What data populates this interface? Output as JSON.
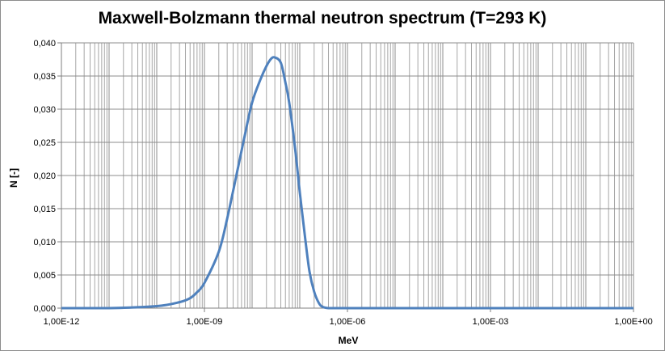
{
  "chart_data": {
    "type": "line",
    "title": "Maxwell-Bolzmann thermal neutron spectrum (T=293 K)",
    "xlabel": "MeV",
    "ylabel": "N [-]",
    "x_scale": "log",
    "xlim": [
      1e-12,
      1
    ],
    "ylim": [
      0,
      0.04
    ],
    "x_tick_labels": [
      "1,00E-12",
      "1,00E-09",
      "1,00E-06",
      "1,00E-03",
      "1,00E+00"
    ],
    "y_tick_labels": [
      "0,000",
      "0,005",
      "0,010",
      "0,015",
      "0,020",
      "0,025",
      "0,030",
      "0,035",
      "0,040"
    ],
    "grid": true,
    "legend": "none",
    "series": [
      {
        "color": "#4f81bd",
        "x": [
          1e-12,
          1e-11,
          1e-10,
          3e-10,
          5e-10,
          7e-10,
          1e-09,
          2e-09,
          3e-09,
          5e-09,
          7e-09,
          1e-08,
          1.5e-08,
          2e-08,
          2.5e-08,
          3e-08,
          4e-08,
          5e-08,
          6e-08,
          8e-08,
          1e-07,
          1.3e-07,
          1.6e-07,
          2e-07,
          2.5e-07,
          3e-07,
          4e-07,
          6e-07,
          1e-06,
          1e-05,
          0.001,
          1
        ],
        "y": [
          0.0,
          0.0,
          0.0003,
          0.0009,
          0.0015,
          0.0024,
          0.0038,
          0.0085,
          0.0135,
          0.021,
          0.026,
          0.031,
          0.0345,
          0.0365,
          0.0376,
          0.0378,
          0.037,
          0.034,
          0.031,
          0.024,
          0.0175,
          0.0105,
          0.0055,
          0.0025,
          0.0008,
          0.0002,
          0.0,
          0.0,
          0.0,
          0.0,
          0.0,
          0.0
        ]
      }
    ]
  }
}
